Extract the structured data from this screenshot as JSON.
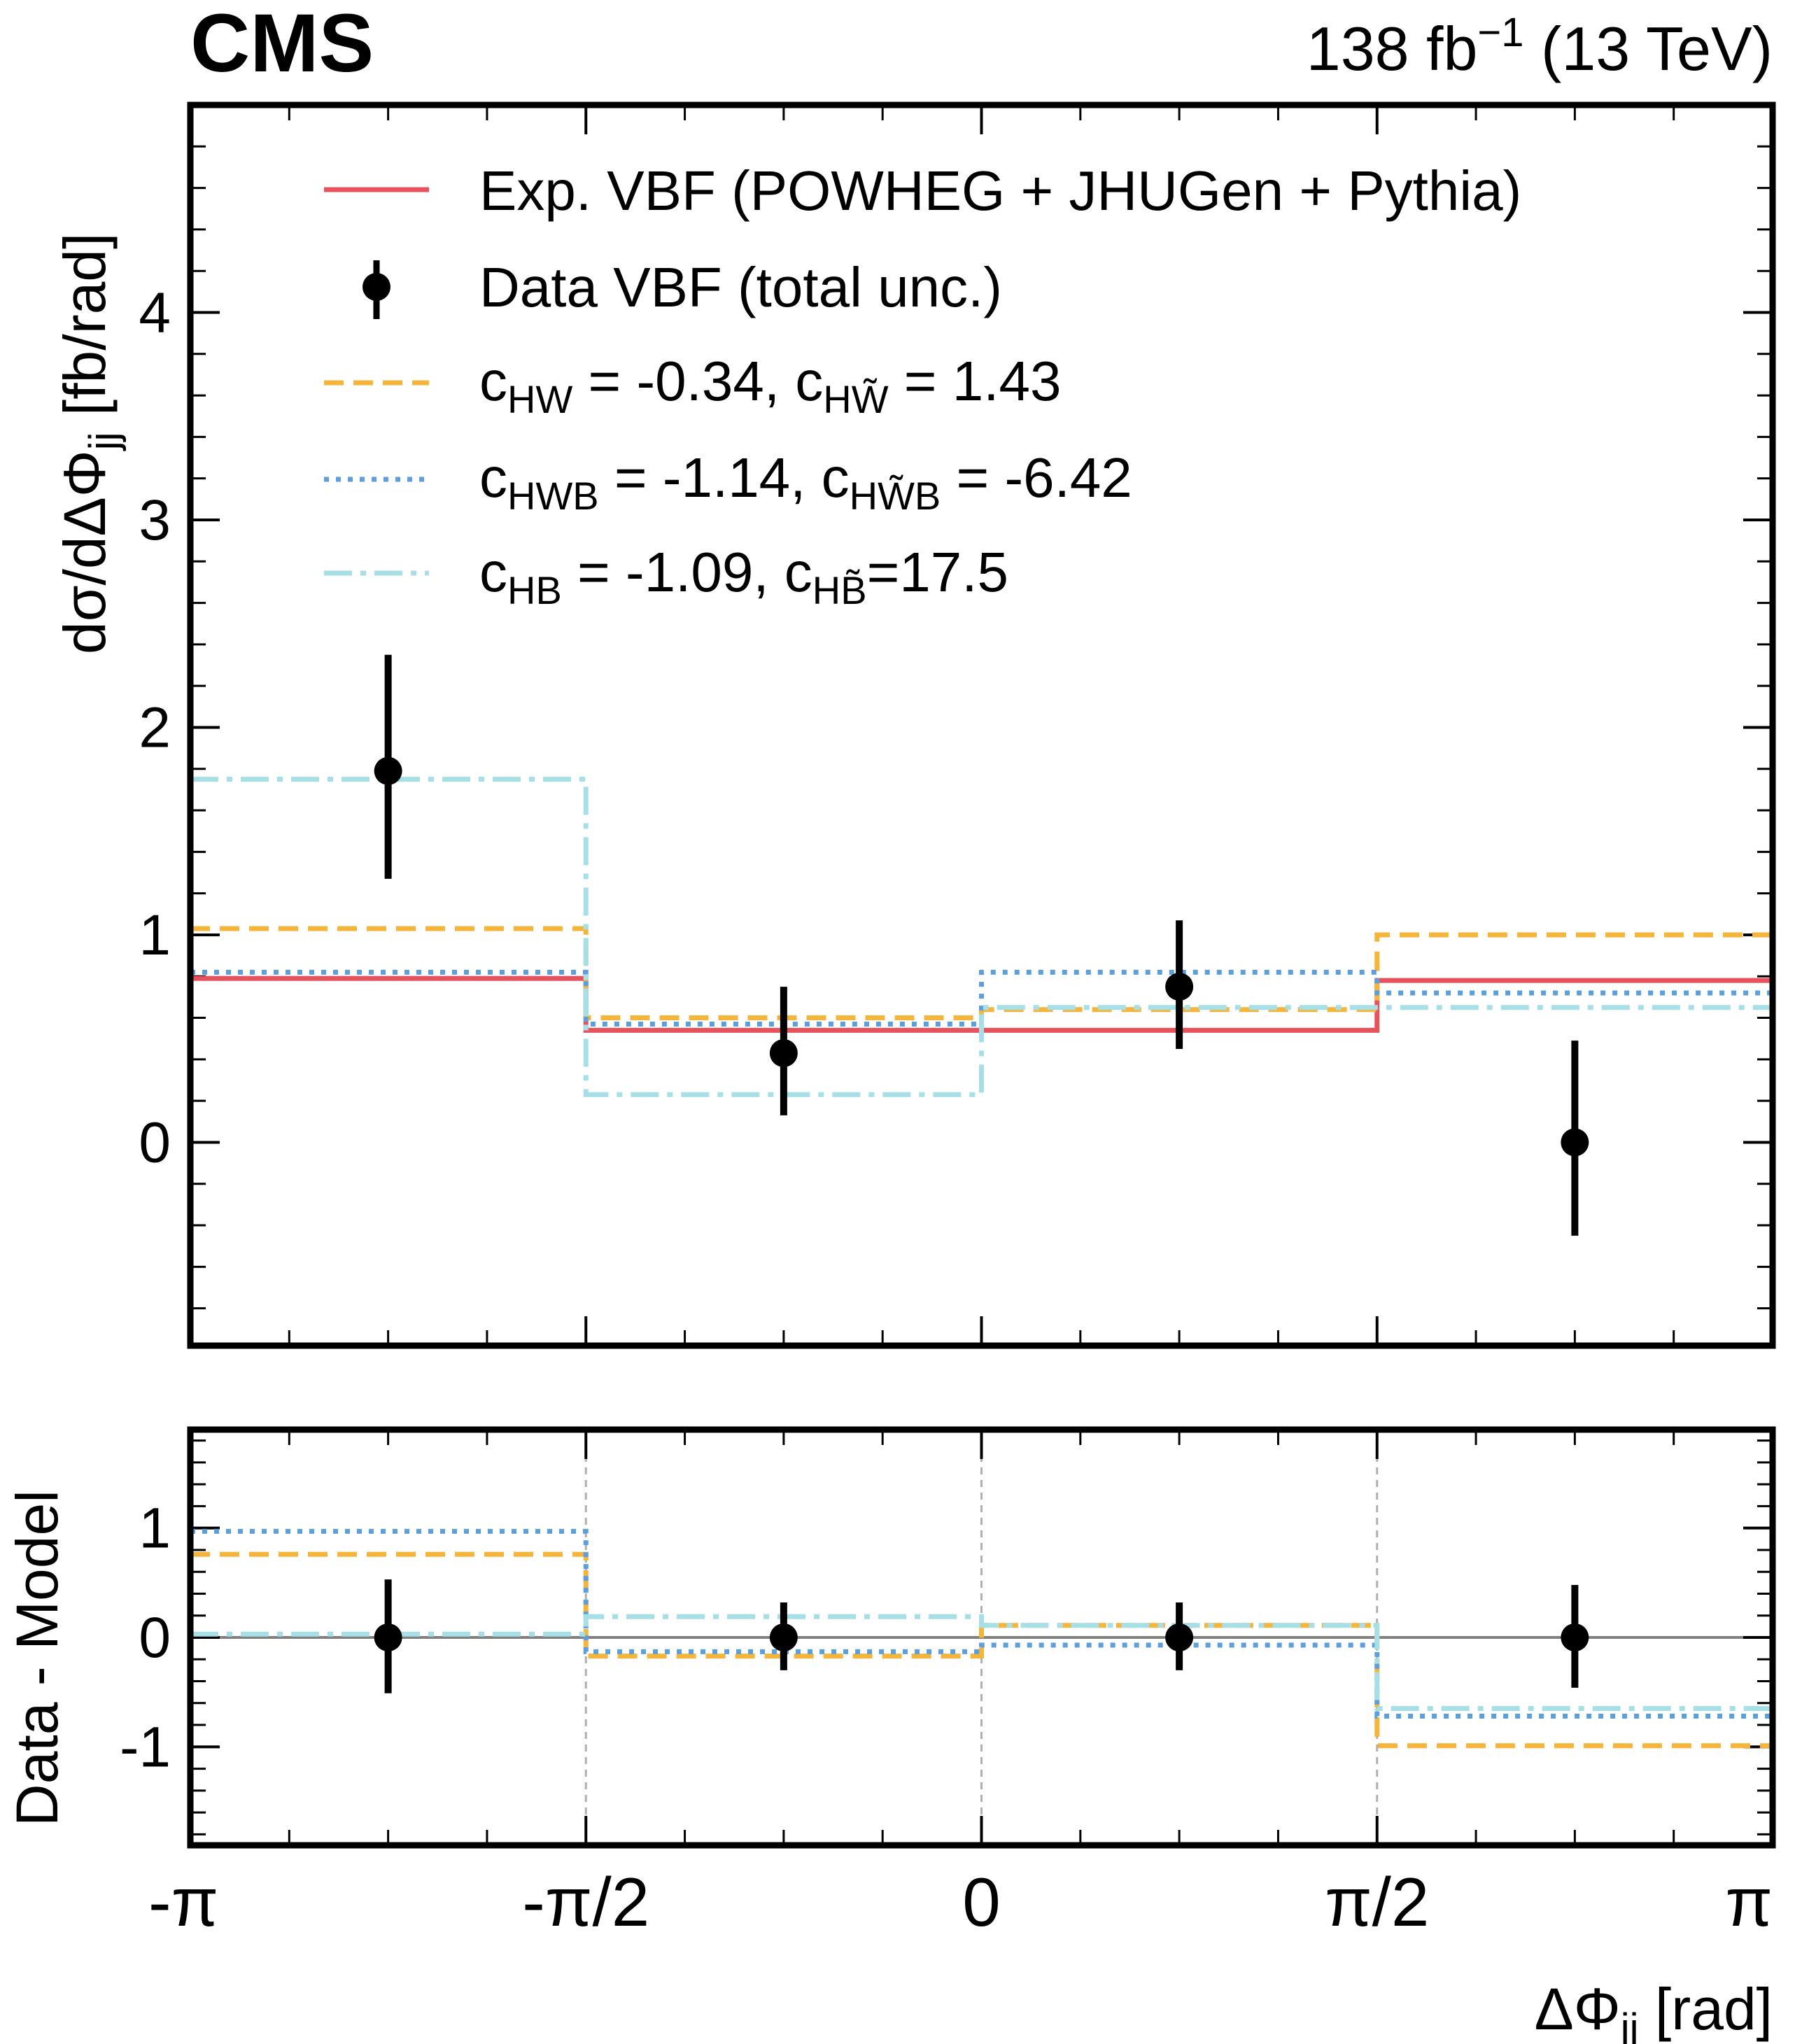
{
  "header": {
    "experiment": "CMS",
    "lumi_value": "138 fb",
    "lumi_exp": "−1",
    "energy": " (13 TeV)"
  },
  "axes": {
    "main_ylabel": "dσ/dΔΦ",
    "main_ylabel_sub": "jj",
    "main_ylabel_unit": " [fb/rad]",
    "ratio_ylabel": "Data - Model",
    "xlabel": "ΔΦ",
    "xlabel_sub": "jj",
    "xlabel_unit": " [rad]"
  },
  "legend": {
    "expected": "Exp. VBF (POWHEG + JHUGen + Pythia)",
    "data": "Data VBF (total unc.)",
    "hw_a": "c",
    "hw_a_sub": "HW",
    "hw_mid": " = -0.34, c",
    "hw_b_sub": "HW̃",
    "hw_end": " = 1.43",
    "hwb_a": "c",
    "hwb_a_sub": "HWB",
    "hwb_mid": " = -1.14, c",
    "hwb_b_sub": "HW̃B",
    "hwb_end": " = -6.42",
    "hb_a": "c",
    "hb_a_sub": "HB",
    "hb_mid": " = -1.09, c",
    "hb_b_sub": "HB̃",
    "hb_end": "=17.5"
  },
  "colors": {
    "expected": "#e8525d",
    "hw": "#f5b43a",
    "hwb": "#5b9fdc",
    "hb": "#a6dfe5",
    "data": "#000000",
    "zero_line": "#808080",
    "bin_grid": "#b0b0b0"
  },
  "chart_data": [
    {
      "type": "line",
      "panel": "main",
      "title": "",
      "xlabel": "ΔΦjj [rad]",
      "ylabel": "dσ/dΔΦjj [fb/rad]",
      "x_edges": [
        -3.14159,
        -1.5708,
        0,
        1.5708,
        3.14159
      ],
      "x_tick_labels": [
        "-π",
        "-π/2",
        "0",
        "π/2",
        "π"
      ],
      "bin_centers": [
        -2.3562,
        -0.7854,
        0.7854,
        2.3562
      ],
      "xlim": [
        -3.14159,
        3.14159
      ],
      "ylim": [
        -0.98,
        5.0
      ],
      "yticks": [
        0,
        1,
        2,
        3,
        4
      ],
      "series": [
        {
          "name": "Exp. VBF (POWHEG + JHUGen + Pythia)",
          "style": "step-solid",
          "values": [
            0.79,
            0.54,
            0.54,
            0.78
          ]
        },
        {
          "name": "cHW = -0.34, cHW̃ = 1.43",
          "style": "step-dashed",
          "values": [
            1.03,
            0.6,
            0.64,
            1.0
          ]
        },
        {
          "name": "cHWB = -1.14, cHW̃B = -6.42",
          "style": "step-dotted",
          "values": [
            0.82,
            0.57,
            0.82,
            0.72
          ]
        },
        {
          "name": "cHB = -1.09, cHB̃=17.5",
          "style": "step-dashdot",
          "values": [
            1.75,
            0.23,
            0.65,
            0.65
          ]
        }
      ],
      "data": {
        "name": "Data VBF (total unc.)",
        "values": [
          1.79,
          0.43,
          0.75,
          0.0
        ],
        "err_low": [
          0.52,
          0.3,
          0.3,
          0.45
        ],
        "err_high": [
          0.56,
          0.32,
          0.32,
          0.49
        ]
      }
    },
    {
      "type": "line",
      "panel": "ratio",
      "ylabel": "Data - Model",
      "xlim": [
        -3.14159,
        3.14159
      ],
      "ylim": [
        -1.9,
        1.9
      ],
      "yticks": [
        -1,
        0,
        1
      ],
      "series": [
        {
          "name": "cHW = -0.34, cHW̃ = 1.43",
          "style": "step-dashed",
          "values": [
            0.76,
            -0.17,
            0.11,
            -0.99
          ]
        },
        {
          "name": "cHWB = -1.14, cHW̃B = -6.42",
          "style": "step-dotted",
          "values": [
            0.97,
            -0.13,
            -0.07,
            -0.72
          ]
        },
        {
          "name": "cHB = -1.09, cHB̃=17.5",
          "style": "step-dashdot",
          "values": [
            0.03,
            0.19,
            0.11,
            -0.65
          ]
        }
      ],
      "data": {
        "values": [
          0.0,
          0.0,
          0.0,
          0.0
        ],
        "err_low": [
          0.51,
          0.3,
          0.3,
          0.46
        ],
        "err_high": [
          0.53,
          0.32,
          0.32,
          0.48
        ]
      }
    }
  ]
}
